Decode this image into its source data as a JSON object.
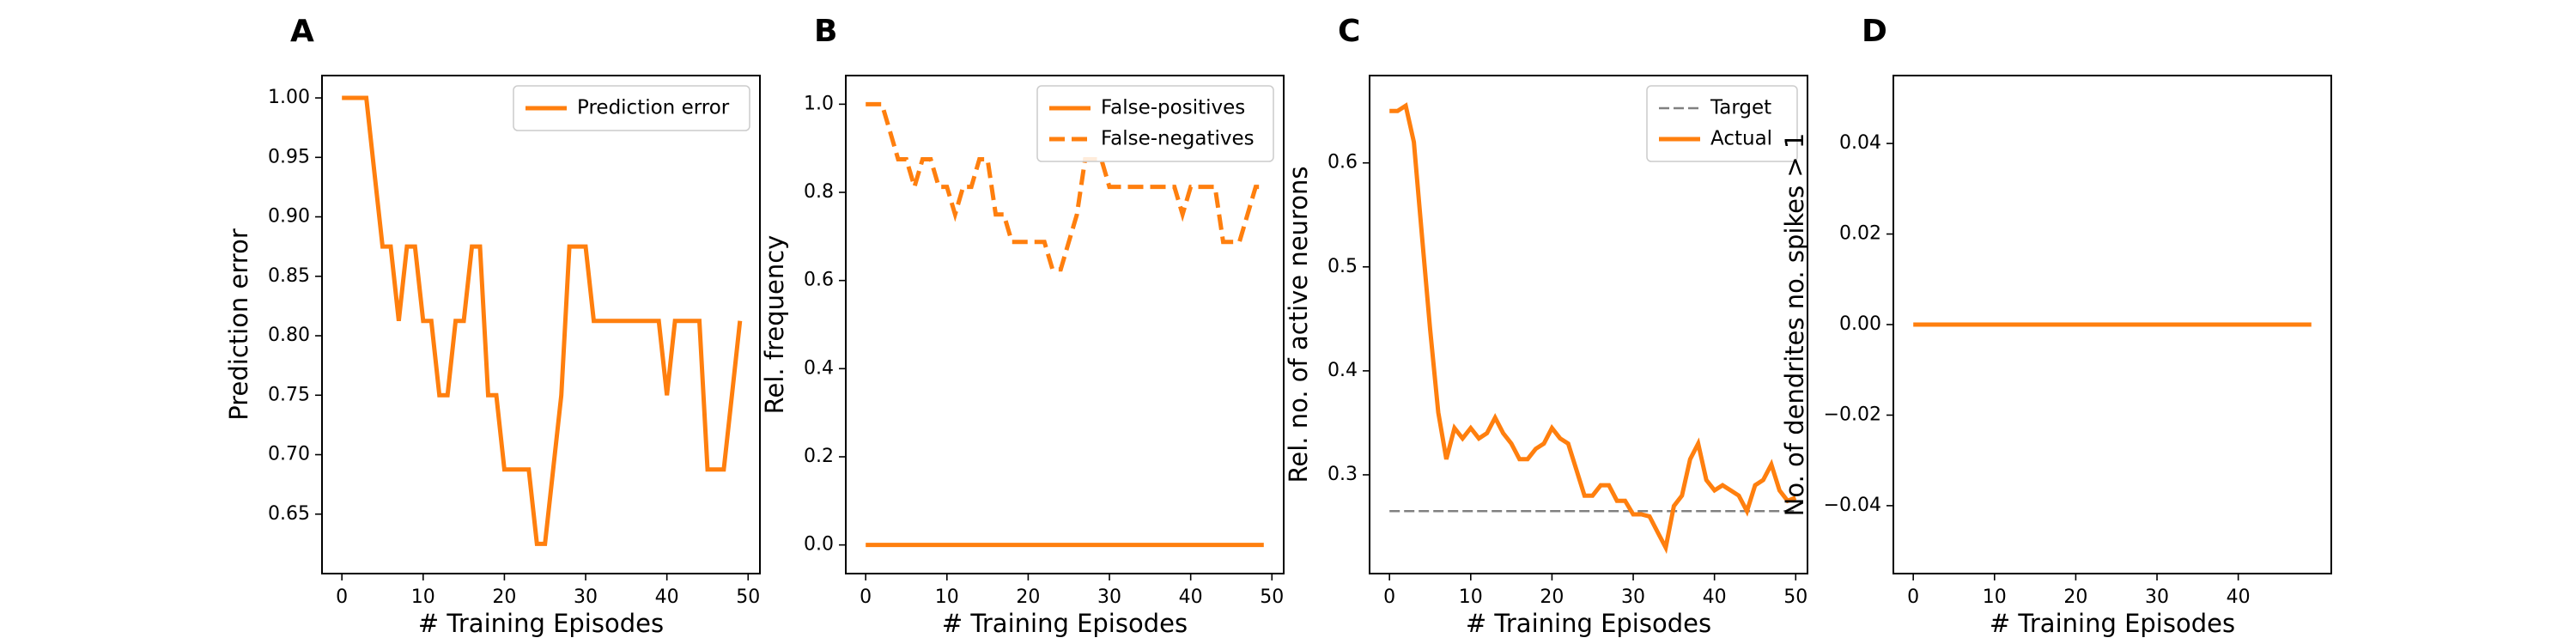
{
  "colors": {
    "orange": "#ff7f0e",
    "target_gray": "#808080"
  },
  "chart_data": [
    {
      "type": "line",
      "panel_label": "A",
      "xlabel": "# Training Episodes",
      "ylabel": "Prediction error",
      "xlim": [
        -2.45,
        51.45
      ],
      "ylim": [
        0.6,
        1.0188
      ],
      "xticks": [
        0,
        10,
        20,
        30,
        40,
        50
      ],
      "yticks": [
        0.65,
        0.7,
        0.75,
        0.8,
        0.85,
        0.9,
        0.95,
        1.0
      ],
      "ytick_labels": [
        "0.65",
        "0.70",
        "0.75",
        "0.80",
        "0.85",
        "0.90",
        "0.95",
        "1.00"
      ],
      "legend": {
        "position": "upper right"
      },
      "series": [
        {
          "name": "Prediction error",
          "style": "solid",
          "x": [
            0,
            1,
            2,
            3,
            4,
            5,
            6,
            7,
            8,
            9,
            10,
            11,
            12,
            13,
            14,
            15,
            16,
            17,
            18,
            19,
            20,
            21,
            22,
            23,
            24,
            25,
            26,
            27,
            28,
            29,
            30,
            31,
            32,
            33,
            34,
            35,
            36,
            37,
            38,
            39,
            40,
            41,
            42,
            43,
            44,
            45,
            46,
            47,
            48,
            49
          ],
          "y": [
            1.0,
            1.0,
            1.0,
            1.0,
            0.9375,
            0.875,
            0.875,
            0.8125,
            0.875,
            0.875,
            0.8125,
            0.8125,
            0.75,
            0.75,
            0.8125,
            0.8125,
            0.875,
            0.875,
            0.75,
            0.75,
            0.6875,
            0.6875,
            0.6875,
            0.6875,
            0.625,
            0.625,
            0.6875,
            0.75,
            0.875,
            0.875,
            0.875,
            0.8125,
            0.8125,
            0.8125,
            0.8125,
            0.8125,
            0.8125,
            0.8125,
            0.8125,
            0.8125,
            0.75,
            0.8125,
            0.8125,
            0.8125,
            0.8125,
            0.6875,
            0.6875,
            0.6875,
            0.75,
            0.8125
          ]
        }
      ]
    },
    {
      "type": "line",
      "panel_label": "B",
      "xlabel": "# Training Episodes",
      "ylabel": "Rel. frequency",
      "xlim": [
        -2.45,
        51.45
      ],
      "ylim": [
        -0.065,
        1.065
      ],
      "xticks": [
        0,
        10,
        20,
        30,
        40,
        50
      ],
      "yticks": [
        0.0,
        0.2,
        0.4,
        0.6,
        0.8,
        1.0
      ],
      "ytick_labels": [
        "0.0",
        "0.2",
        "0.4",
        "0.6",
        "0.8",
        "1.0"
      ],
      "legend": {
        "position": "upper right"
      },
      "series": [
        {
          "name": "False-positives",
          "style": "solid",
          "x": [
            0,
            49
          ],
          "y": [
            0,
            0
          ]
        },
        {
          "name": "False-negatives",
          "style": "dashed",
          "x": [
            0,
            1,
            2,
            3,
            4,
            5,
            6,
            7,
            8,
            9,
            10,
            11,
            12,
            13,
            14,
            15,
            16,
            17,
            18,
            19,
            20,
            21,
            22,
            23,
            24,
            25,
            26,
            27,
            28,
            29,
            30,
            31,
            32,
            33,
            34,
            35,
            36,
            37,
            38,
            39,
            40,
            41,
            42,
            43,
            44,
            45,
            46,
            47,
            48,
            49
          ],
          "y": [
            1.0,
            1.0,
            1.0,
            0.9375,
            0.875,
            0.875,
            0.8125,
            0.875,
            0.875,
            0.8125,
            0.8125,
            0.75,
            0.8125,
            0.8125,
            0.875,
            0.875,
            0.75,
            0.75,
            0.6875,
            0.6875,
            0.6875,
            0.6875,
            0.6875,
            0.625,
            0.625,
            0.6875,
            0.75,
            0.875,
            0.875,
            0.875,
            0.8125,
            0.8125,
            0.8125,
            0.8125,
            0.8125,
            0.8125,
            0.8125,
            0.8125,
            0.8125,
            0.75,
            0.8125,
            0.8125,
            0.8125,
            0.8125,
            0.6875,
            0.6875,
            0.6875,
            0.75,
            0.8125,
            0.8125
          ]
        }
      ]
    },
    {
      "type": "line",
      "panel_label": "C",
      "xlabel": "# Training Episodes",
      "ylabel": "Rel. no. of active neurons",
      "xlim": [
        -2.45,
        51.45
      ],
      "ylim": [
        0.205,
        0.684
      ],
      "xticks": [
        0,
        10,
        20,
        30,
        40,
        50
      ],
      "yticks": [
        0.3,
        0.4,
        0.5,
        0.6
      ],
      "ytick_labels": [
        "0.3",
        "0.4",
        "0.5",
        "0.6"
      ],
      "legend": {
        "position": "upper right"
      },
      "series": [
        {
          "name": "Target",
          "style": "dashed-gray",
          "x": [
            0,
            50
          ],
          "y": [
            0.265,
            0.265
          ]
        },
        {
          "name": "Actual",
          "style": "solid",
          "x": [
            0,
            1,
            2,
            3,
            4,
            5,
            6,
            7,
            8,
            9,
            10,
            11,
            12,
            13,
            14,
            15,
            16,
            17,
            18,
            19,
            20,
            21,
            22,
            23,
            24,
            25,
            26,
            27,
            28,
            29,
            30,
            31,
            32,
            33,
            34,
            35,
            36,
            37,
            38,
            39,
            40,
            41,
            42,
            43,
            44,
            45,
            46,
            47,
            48,
            49,
            50
          ],
          "y": [
            0.65,
            0.65,
            0.655,
            0.62,
            0.53,
            0.44,
            0.36,
            0.315,
            0.345,
            0.335,
            0.345,
            0.335,
            0.34,
            0.355,
            0.34,
            0.33,
            0.315,
            0.315,
            0.325,
            0.33,
            0.345,
            0.335,
            0.33,
            0.305,
            0.28,
            0.28,
            0.29,
            0.29,
            0.275,
            0.275,
            0.262,
            0.262,
            0.26,
            0.245,
            0.23,
            0.27,
            0.28,
            0.315,
            0.33,
            0.295,
            0.285,
            0.29,
            0.285,
            0.28,
            0.265,
            0.29,
            0.295,
            0.31,
            0.285,
            0.275,
            0.278
          ]
        }
      ]
    },
    {
      "type": "line",
      "panel_label": "D",
      "xlabel": "# Training Episodes",
      "ylabel": "No. of dendrites no. spikes > 1",
      "xlim": [
        -2.45,
        51.45
      ],
      "ylim": [
        -0.055,
        0.055
      ],
      "xticks": [
        0,
        10,
        20,
        30,
        40
      ],
      "yticks": [
        -0.04,
        -0.02,
        0.0,
        0.02,
        0.04
      ],
      "ytick_labels": [
        "−0.04",
        "−0.02",
        "0.00",
        "0.02",
        "0.04"
      ],
      "series": [
        {
          "name": "",
          "style": "solid",
          "x": [
            0,
            49
          ],
          "y": [
            0,
            0
          ]
        }
      ]
    }
  ]
}
